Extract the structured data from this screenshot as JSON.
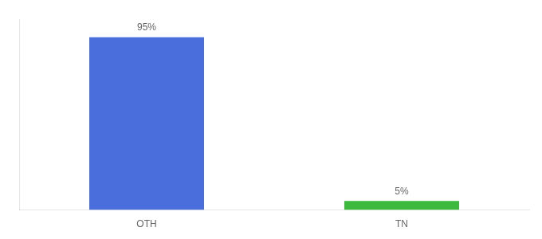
{
  "chart_data": {
    "type": "bar",
    "categories": [
      "OTH",
      "TN"
    ],
    "values": [
      95,
      5
    ],
    "value_labels": [
      "95%",
      "5%"
    ],
    "data_labels": true,
    "colors": [
      "#4a6fdc",
      "#3dba3d"
    ],
    "ylim": [
      0,
      105
    ],
    "tick_labels": "x",
    "grid": false
  }
}
